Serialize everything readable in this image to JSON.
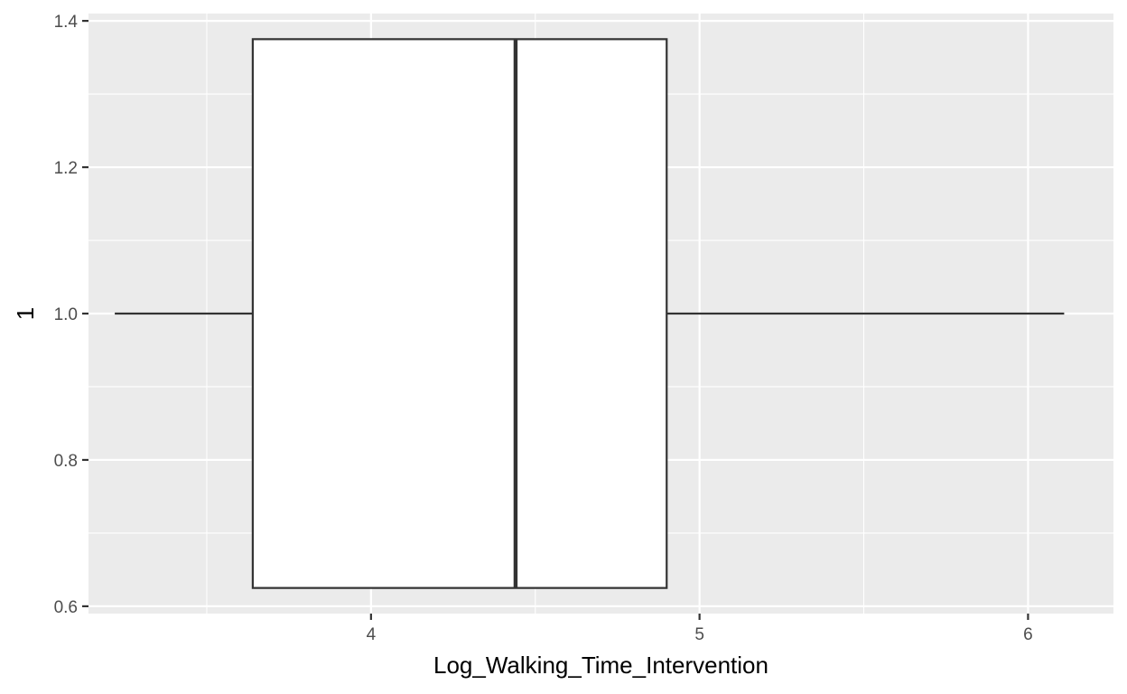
{
  "chart_data": {
    "type": "boxplot",
    "title": "",
    "xlabel": "Log_Walking_Time_Intervention",
    "ylabel": "1",
    "xlim": [
      3.14,
      6.26
    ],
    "ylim": [
      0.59,
      1.41
    ],
    "x_ticks": [
      4,
      5,
      6
    ],
    "x_tick_labels": [
      "4",
      "5",
      "6"
    ],
    "x_minor_ticks": [
      3.5,
      4.5,
      5.5
    ],
    "y_ticks": [
      0.6,
      0.8,
      1.0,
      1.2,
      1.4
    ],
    "y_tick_labels": [
      "0.6",
      "0.8",
      "1.0",
      "1.2",
      "1.4"
    ],
    "y_minor_ticks": [
      0.7,
      0.9,
      1.1,
      1.3
    ],
    "grid": true,
    "legend": "none",
    "box": {
      "y_center": 1.0,
      "y_lower": 0.625,
      "y_upper": 1.375,
      "whisker_low": 3.22,
      "q1": 3.64,
      "median": 4.44,
      "q3": 4.9,
      "whisker_high": 6.11
    },
    "colors": {
      "panel_background": "#ebebeb",
      "grid": "#ffffff",
      "box_fill": "#ffffff",
      "box_line": "#333333",
      "tick_text": "#4d4d4d",
      "axis_ticks": "#333333"
    }
  }
}
